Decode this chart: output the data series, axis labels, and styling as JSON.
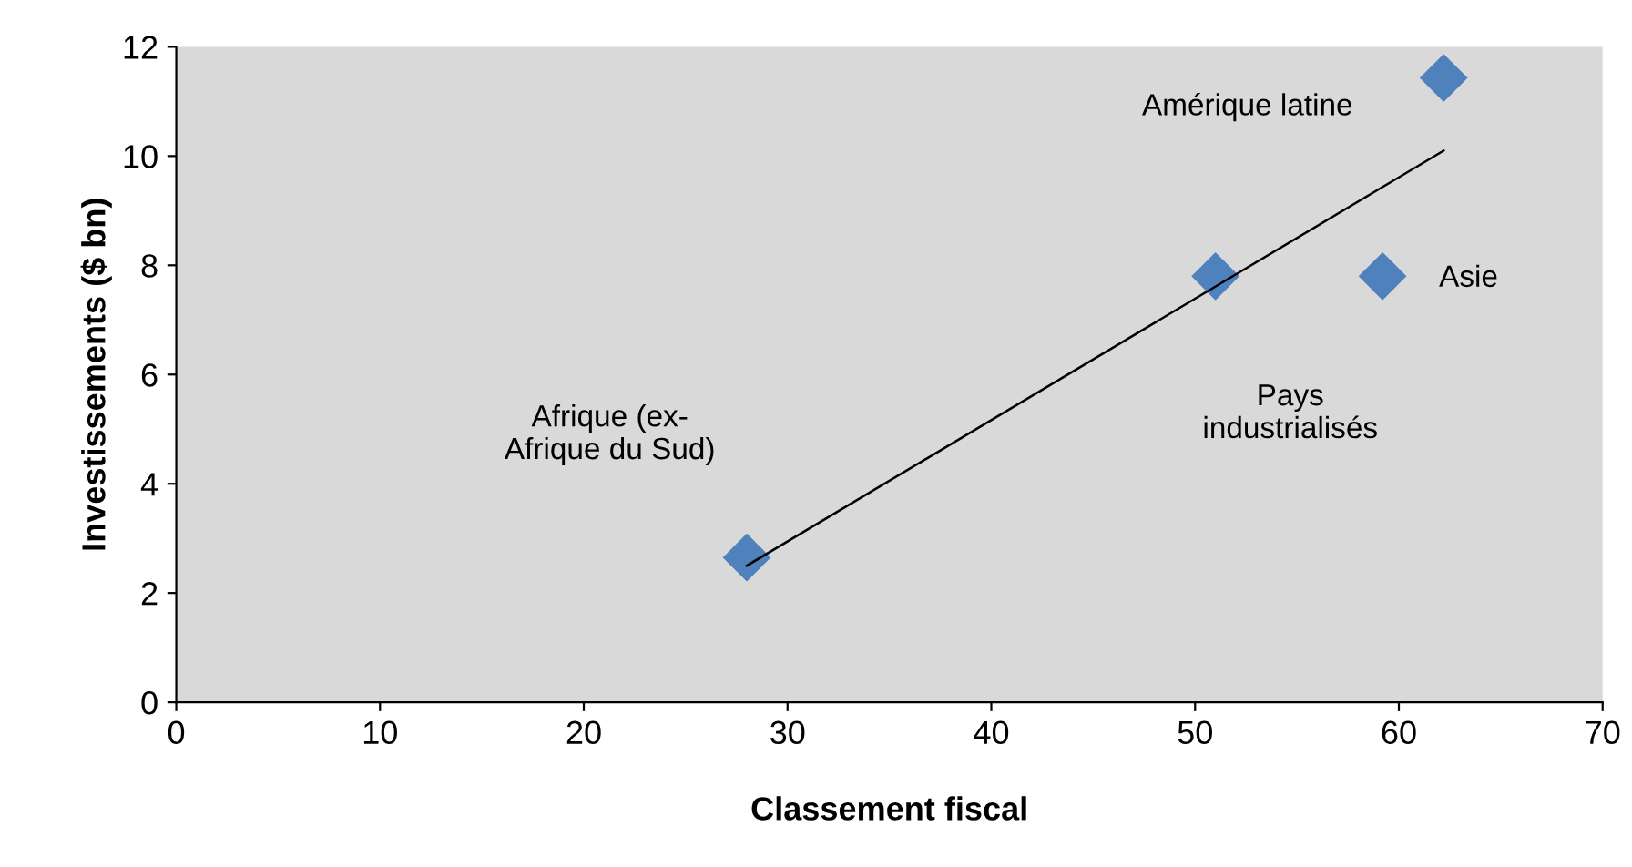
{
  "chart_data": {
    "type": "scatter",
    "xlabel": "Classement fiscal",
    "ylabel": "Investissements ($ bn)",
    "xlim": [
      0,
      70
    ],
    "xticks": [
      0,
      10,
      20,
      30,
      40,
      50,
      60,
      70
    ],
    "ylim": [
      0,
      12
    ],
    "yticks": [
      0,
      2,
      4,
      6,
      8,
      10,
      12
    ],
    "grid": false,
    "legend": false,
    "series": [
      {
        "marker": "diamond",
        "color": "#4f81bd",
        "x": [
          28,
          51,
          59.2,
          62.2
        ],
        "values": [
          2.65,
          7.8,
          7.8,
          11.43
        ]
      },
      {
        "type": "line",
        "color": "#000000",
        "x": [
          28,
          62.2
        ],
        "values": [
          2.5,
          10.1
        ]
      }
    ],
    "annotations": [
      "Afrique (ex-\nAfrique du Sud)",
      "Pays\nindustrialisés",
      "Asie",
      "Amérique latine"
    ]
  }
}
